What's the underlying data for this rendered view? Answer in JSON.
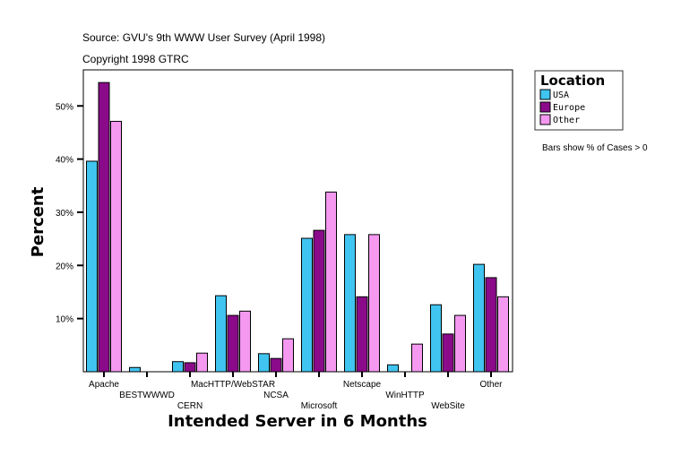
{
  "chart_data": {
    "type": "bar",
    "source": "Source: GVU's 9th WWW User Survey (April 1998)",
    "copyright": "Copyright 1998 GTRC",
    "xlabel": "Intended Server in 6 Months",
    "ylabel": "Percent",
    "note": "Bars show % of Cases > 0",
    "legend_title": "Location",
    "legend_position": "top-right",
    "ylim": [
      0,
      56.5
    ],
    "yticks": [
      10,
      20,
      30,
      40,
      50
    ],
    "ytick_labels": [
      "10%",
      "20%",
      "30%",
      "40%",
      "50%"
    ],
    "grid": false,
    "categories": [
      "Apache",
      "BESTWWWD",
      "CERN",
      "MacHTTP/WebSTAR",
      "NCSA",
      "Microsoft",
      "Netscape",
      "WinHTTP",
      "WebSite",
      "Other"
    ],
    "series": [
      {
        "name": "USA",
        "color": "#40c4f0",
        "values": [
          39.6,
          0.8,
          1.9,
          14.3,
          3.4,
          25.1,
          25.8,
          1.3,
          12.6,
          20.2
        ]
      },
      {
        "name": "Europe",
        "color": "#8a0a8a",
        "values": [
          54.4,
          0,
          1.7,
          10.6,
          2.5,
          26.6,
          14.1,
          0,
          7.1,
          17.7
        ]
      },
      {
        "name": "Other",
        "color": "#f498f0",
        "values": [
          47.1,
          0,
          3.5,
          11.4,
          6.2,
          33.8,
          25.8,
          5.2,
          10.6,
          14.1
        ]
      }
    ]
  }
}
